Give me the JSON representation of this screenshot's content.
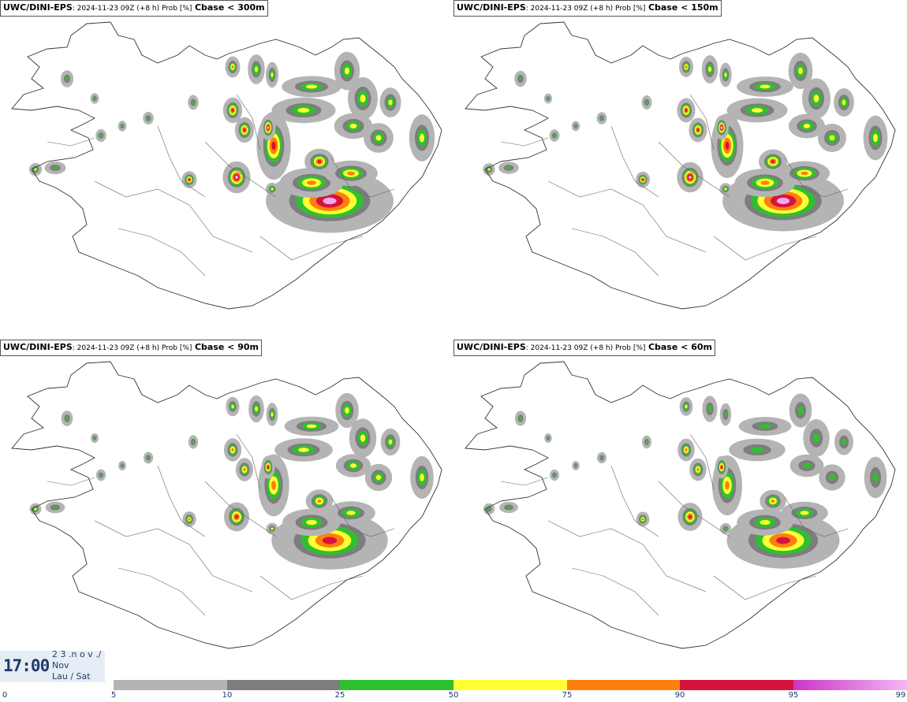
{
  "panels": [
    {
      "source": "UWC/DINI-EPS",
      "meta": ": 2024-11-23 09Z (+8 h) Prob [%]",
      "label": "Cbase < 300m",
      "scale": 1.0
    },
    {
      "source": "UWC/DINI-EPS",
      "meta": ": 2024-11-23 09Z (+8 h) Prob [%]",
      "label": "Cbase < 150m",
      "scale": 0.85
    },
    {
      "source": "UWC/DINI-EPS",
      "meta": ": 2024-11-23 09Z (+8 h) Prob [%]",
      "label": "Cbase < 90m",
      "scale": 0.72
    },
    {
      "source": "UWC/DINI-EPS",
      "meta": ": 2024-11-23 09Z (+8 h) Prob [%]",
      "label": "Cbase < 60m",
      "scale": 0.62
    }
  ],
  "time": {
    "clock": "17:00",
    "date_line1": "2 3 .n o v ./",
    "date_line2": "Nov",
    "date_line3": "Lau / Sat"
  },
  "colorbar": {
    "ticks": [
      "0",
      "5",
      "10",
      "25",
      "50",
      "75",
      "90",
      "95",
      "99"
    ],
    "colors": [
      "#b4b4b4",
      "#7d7d7d",
      "#2fc02f",
      "#ffff33",
      "#ff7f0e",
      "#d4143c",
      "#cc33cc"
    ]
  }
}
